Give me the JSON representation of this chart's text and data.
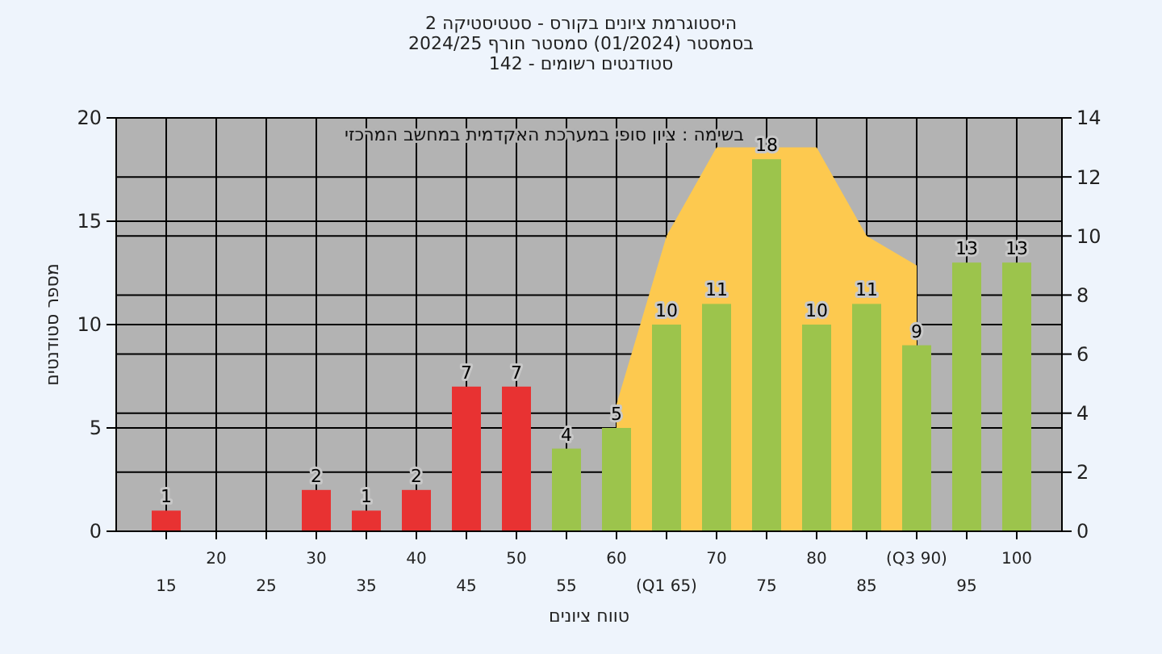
{
  "chart_data": {
    "type": "bar",
    "title": "היסטוגרמת ציונים בקורס - סטטיסטיקה 2\nבסמסטר (01/2024) סמסטר חורף 2024/25",
    "subtitle": "סטודנטים רשומים - 142",
    "xlabel": "טווח ציונים",
    "ylabel": "מספר סטודנטים",
    "annotations": [
      "בשימה : ציון סופי במערכת האקדמית במחשב המרכזי"
    ],
    "categories": [
      "15",
      "20",
      "25",
      "30",
      "35",
      "40",
      "45",
      "50",
      "55",
      "60",
      "(Q1 65)",
      "70",
      "75",
      "80",
      "85",
      "(Q3 90)",
      "95",
      "100"
    ],
    "series": [
      {
        "type": "area",
        "axis": "y2",
        "color": "#fdc94f",
        "values": [
          null,
          null,
          null,
          null,
          null,
          null,
          null,
          null,
          null,
          4.3,
          10,
          13,
          13,
          13,
          10,
          9,
          null,
          null
        ]
      },
      {
        "colors": [
          "#e83232",
          "#e83232",
          "#e83232",
          "#e83232",
          "#e83232",
          "#e83232",
          "#e83232",
          "#e83232",
          "#9cc44c",
          "#9cc44c",
          "#9cc44c",
          "#9cc44c",
          "#9cc44c",
          "#9cc44c",
          "#9cc44c",
          "#9cc44c",
          "#9cc44c",
          "#9cc44c"
        ],
        "values": [
          1,
          0,
          0,
          2,
          1,
          2,
          7,
          7,
          4,
          5,
          10,
          11,
          18,
          10,
          11,
          9,
          13,
          13
        ],
        "value_labels": [
          "1",
          null,
          null,
          "2",
          "1",
          "2",
          "7",
          "7",
          "4",
          "5",
          "10",
          "11",
          "18",
          "10",
          "11",
          "9",
          "13",
          "13"
        ]
      }
    ],
    "ylim": [
      0,
      20
    ],
    "yticks": [
      0,
      5,
      10,
      15,
      20
    ],
    "y2lim": [
      0,
      14
    ],
    "y2ticks": [
      0,
      2,
      4,
      6,
      8,
      10,
      12,
      14
    ],
    "grid": true,
    "legend": false
  }
}
